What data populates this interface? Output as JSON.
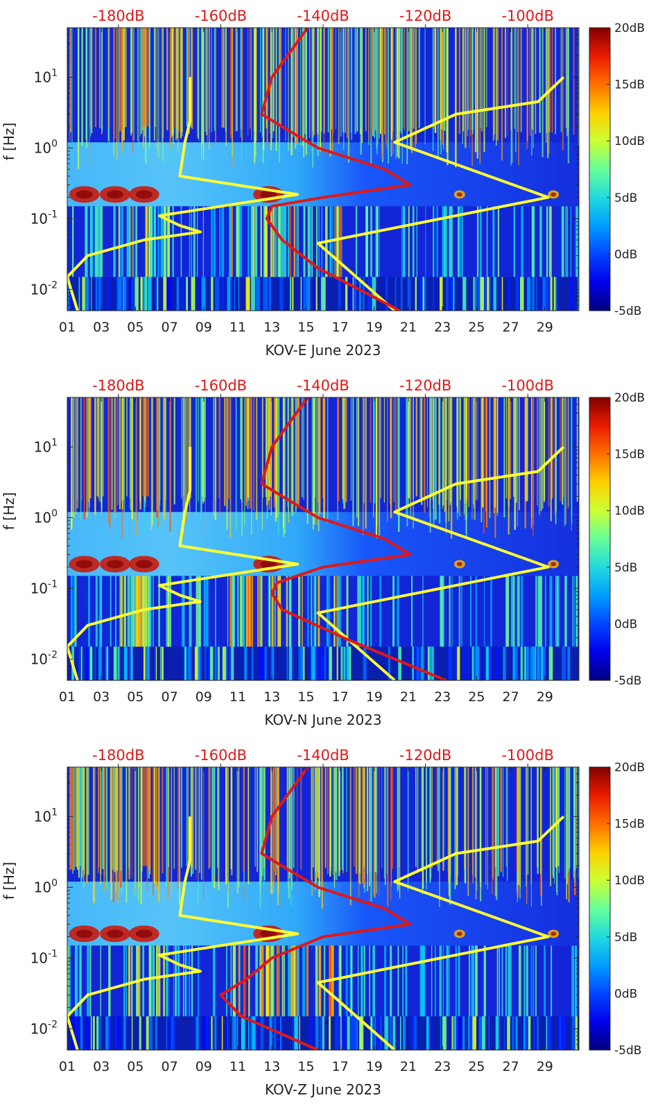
{
  "figure": {
    "frequency_label": "f [Hz]",
    "top_axis_labels": [
      "-180dB",
      "-160dB",
      "-140dB",
      "-120dB",
      "-100dB"
    ],
    "y_tick_labels": [
      "10^{-2}",
      "10^{-1}",
      "10^{0}",
      "10^{1}"
    ],
    "x_tick_labels": [
      "01",
      "03",
      "05",
      "07",
      "09",
      "11",
      "13",
      "15",
      "17",
      "19",
      "21",
      "23",
      "25",
      "27",
      "29"
    ],
    "colorbar_labels": [
      "20dB",
      "15dB",
      "10dB",
      "5dB",
      "0dB",
      "-5dB"
    ],
    "colors": {
      "psd_curve": "#e01818",
      "model_curve": "#ffff33",
      "background": "#1226d8"
    }
  },
  "chart_data": [
    {
      "type": "heatmap",
      "title": "KOV-E June 2023",
      "xlabel": "KOV-E June 2023",
      "ylabel": "f [Hz]",
      "x_range_days": [
        1,
        31
      ],
      "y_range_hz": [
        0.005,
        50
      ],
      "y_scale": "log",
      "color_range_db": [
        -5,
        20
      ],
      "top_axis_range_db": [
        -190,
        -90
      ],
      "microseism_peak_days": [
        2,
        3.8,
        5.5,
        12.8,
        24,
        29.5
      ],
      "red_psd_curve": {
        "name": "PSD (top axis, dB)",
        "freq_hz": [
          0.005,
          0.02,
          0.05,
          0.1,
          0.15,
          0.2,
          0.3,
          0.5,
          1,
          2,
          3,
          10,
          50
        ],
        "db": [
          -125,
          -141,
          -148,
          -151,
          -150,
          -140,
          -123,
          -128,
          -141,
          -148,
          -152,
          -150,
          -143
        ]
      },
      "yellow_model_curves": [
        {
          "name": "low model (top axis, dB)",
          "freq_hz": [
            0.005,
            0.015,
            0.03,
            0.05,
            0.065,
            0.08,
            0.11,
            0.22,
            0.4,
            1.2,
            2.4,
            10
          ],
          "db": [
            -188,
            -190,
            -186,
            -175,
            -164,
            -168,
            -172,
            -145,
            -168,
            -167,
            -166,
            -166
          ]
        },
        {
          "name": "high model (top axis, dB)",
          "freq_hz": [
            0.005,
            0.045,
            0.065,
            0.2,
            1.2,
            3,
            4.5,
            10
          ],
          "db": [
            -126,
            -141,
            -130,
            -96,
            -126,
            -114,
            -98,
            -93
          ]
        }
      ]
    },
    {
      "type": "heatmap",
      "title": "KOV-N June 2023",
      "xlabel": "KOV-N June 2023",
      "ylabel": "f [Hz]",
      "x_range_days": [
        1,
        31
      ],
      "y_range_hz": [
        0.005,
        50
      ],
      "y_scale": "log",
      "color_range_db": [
        -5,
        20
      ],
      "top_axis_range_db": [
        -190,
        -90
      ],
      "microseism_peak_days": [
        2,
        3.8,
        5.5,
        12.8,
        24,
        29.5
      ],
      "red_psd_curve": {
        "name": "PSD (top axis, dB)",
        "freq_hz": [
          0.005,
          0.02,
          0.05,
          0.085,
          0.12,
          0.2,
          0.3,
          0.5,
          1,
          2,
          3,
          10,
          50
        ],
        "db": [
          -116,
          -136,
          -148,
          -150,
          -149,
          -140,
          -123,
          -128,
          -141,
          -148,
          -152,
          -150,
          -143
        ]
      },
      "yellow_model_curves": [
        {
          "name": "low model (top axis, dB)",
          "freq_hz": [
            0.005,
            0.015,
            0.03,
            0.05,
            0.065,
            0.08,
            0.11,
            0.22,
            0.4,
            1.2,
            2.4,
            10
          ],
          "db": [
            -188,
            -190,
            -186,
            -175,
            -164,
            -168,
            -172,
            -145,
            -168,
            -167,
            -166,
            -166
          ]
        },
        {
          "name": "high model (top axis, dB)",
          "freq_hz": [
            0.005,
            0.045,
            0.065,
            0.2,
            1.2,
            3,
            4.5,
            10
          ],
          "db": [
            -126,
            -141,
            -130,
            -96,
            -126,
            -114,
            -98,
            -93
          ]
        }
      ]
    },
    {
      "type": "heatmap",
      "title": "KOV-Z June 2023",
      "xlabel": "KOV-Z June 2023",
      "ylabel": "f [Hz]",
      "x_range_days": [
        1,
        31
      ],
      "y_range_hz": [
        0.005,
        50
      ],
      "y_scale": "log",
      "color_range_db": [
        -5,
        20
      ],
      "top_axis_range_db": [
        -190,
        -90
      ],
      "microseism_peak_days": [
        2,
        3.8,
        5.5,
        12.8,
        24,
        29.5
      ],
      "red_psd_curve": {
        "name": "PSD (top axis, dB)",
        "freq_hz": [
          0.005,
          0.015,
          0.03,
          0.05,
          0.1,
          0.2,
          0.3,
          0.5,
          1,
          2,
          3,
          10,
          50
        ],
        "db": [
          -141,
          -156,
          -160,
          -155,
          -150,
          -140,
          -123,
          -128,
          -141,
          -148,
          -152,
          -150,
          -143
        ]
      },
      "yellow_model_curves": [
        {
          "name": "low model (top axis, dB)",
          "freq_hz": [
            0.005,
            0.015,
            0.03,
            0.05,
            0.065,
            0.08,
            0.11,
            0.22,
            0.4,
            1.2,
            2.4,
            10
          ],
          "db": [
            -188,
            -190,
            -186,
            -175,
            -164,
            -168,
            -172,
            -145,
            -168,
            -167,
            -166,
            -166
          ]
        },
        {
          "name": "high model (top axis, dB)",
          "freq_hz": [
            0.005,
            0.045,
            0.065,
            0.2,
            1.2,
            3,
            4.5,
            10
          ],
          "db": [
            -126,
            -141,
            -130,
            -96,
            -126,
            -114,
            -98,
            -93
          ]
        }
      ]
    }
  ]
}
